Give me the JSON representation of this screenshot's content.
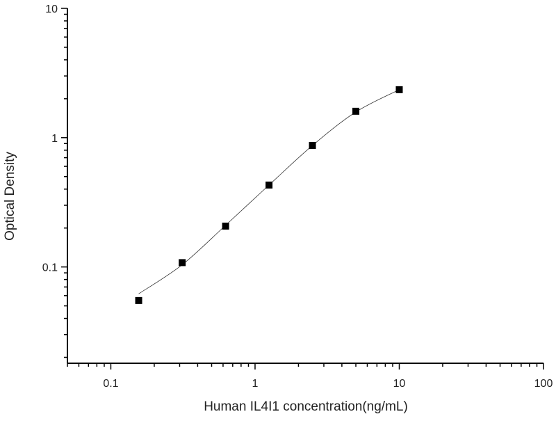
{
  "chart_data": {
    "type": "scatter",
    "title": "",
    "xlabel": "Human IL4I1 concentration(ng/mL)",
    "ylabel": "Optical Density",
    "xscale": "log",
    "yscale": "log",
    "xlim": [
      0.05,
      100
    ],
    "ylim": [
      0.018,
      10
    ],
    "xticks": [
      {
        "value": 0.1,
        "label": "0.1"
      },
      {
        "value": 1,
        "label": "1"
      },
      {
        "value": 10,
        "label": "10"
      },
      {
        "value": 100,
        "label": "100"
      }
    ],
    "yticks": [
      {
        "value": 0.1,
        "label": "0.1"
      },
      {
        "value": 1,
        "label": "1"
      },
      {
        "value": 10,
        "label": "10"
      }
    ],
    "grid": false,
    "legend": "none",
    "marker_color": "#000000",
    "series": [
      {
        "x": [
          0.156,
          0.3125,
          0.625,
          1.25,
          2.5,
          5,
          10
        ],
        "y": [
          0.055,
          0.108,
          0.207,
          0.43,
          0.87,
          1.6,
          2.35
        ]
      }
    ],
    "fit_curve": {
      "x": [
        0.156,
        0.3125,
        0.625,
        1.25,
        2.5,
        5,
        10
      ],
      "y": [
        0.062,
        0.104,
        0.21,
        0.43,
        0.87,
        1.58,
        2.35
      ]
    }
  }
}
